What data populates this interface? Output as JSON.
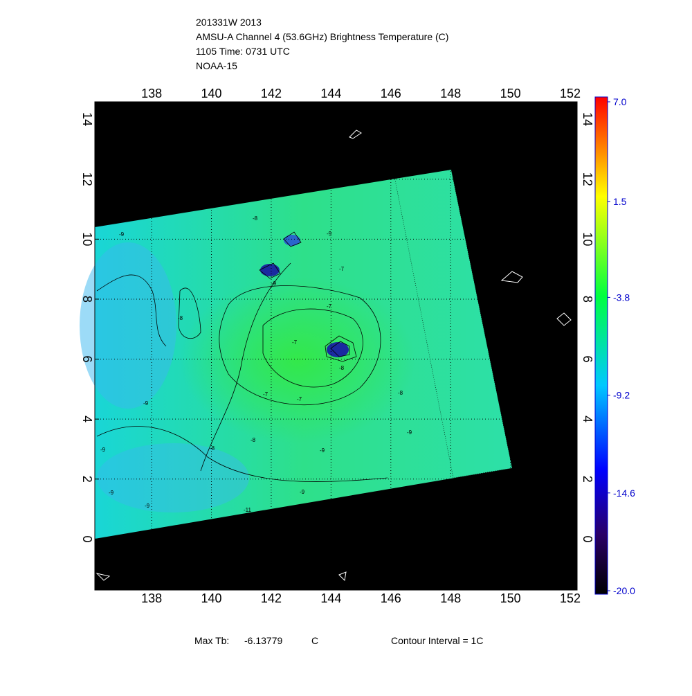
{
  "chart_data": {
    "type": "contour-map",
    "title_lines": [
      "201331W 2013",
      "AMSU-A Channel 4 (53.6GHz) Brightness Temperature (C)",
      "1105 Time: 0731 UTC",
      "NOAA-15"
    ],
    "xlim": [
      136.1,
      152.23
    ],
    "ylim": [
      -1.7,
      14.58
    ],
    "xticks": [
      138,
      140,
      142,
      144,
      146,
      148,
      150,
      152
    ],
    "yticks": [
      0,
      2,
      4,
      6,
      8,
      10,
      12,
      14
    ],
    "grid": true,
    "colorbar": {
      "lim": [
        -20,
        7
      ],
      "ticks": [
        {
          "value": 7,
          "label": "7.0"
        },
        1.5,
        -3.8,
        -9.2,
        -14.6,
        {
          "value": -20,
          "label": "-20.0"
        }
      ]
    },
    "contour_labels": [
      "-9",
      "-8",
      "-9",
      "-9",
      "-8",
      "-7",
      "-7",
      "-7",
      "-7",
      "-7",
      "-8",
      "-9",
      "-9",
      "-8",
      "-8",
      "-9",
      "-9",
      "-9",
      "-9",
      "-11",
      "-9",
      "-8"
    ],
    "footer": {
      "max_label": "Max Tb:",
      "max_value": "-6.13779",
      "unit": "C",
      "interval": "Contour Interval = 1C"
    }
  }
}
